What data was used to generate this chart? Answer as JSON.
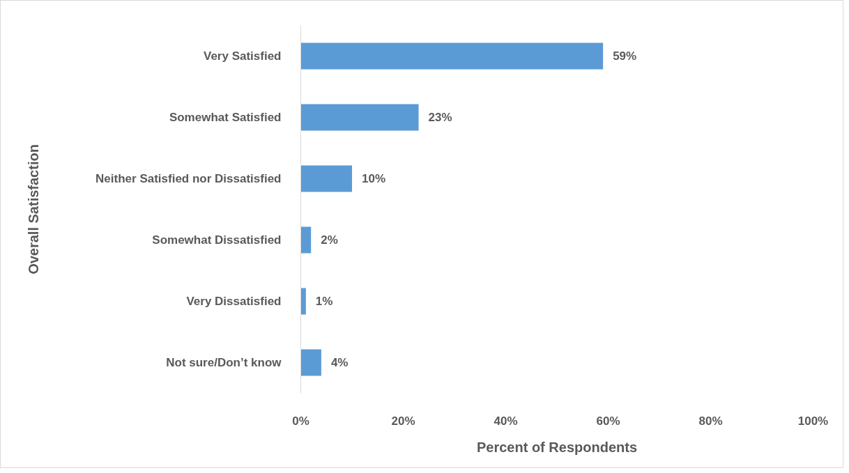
{
  "chart_data": {
    "type": "bar",
    "orientation": "horizontal",
    "xlabel": "Percent of Respondents",
    "ylabel": "Overall Satisfaction",
    "categories": [
      "Very Satisfied",
      "Somewhat Satisfied",
      "Neither Satisfied nor Dissatisfied",
      "Somewhat Dissatisfied",
      "Very Dissatisfied",
      "Not sure/Don’t know"
    ],
    "values": [
      59,
      23,
      10,
      2,
      1,
      4
    ],
    "value_labels": [
      "59%",
      "23%",
      "10%",
      "2%",
      "1%",
      "4%"
    ],
    "color": "#5b9bd5",
    "xlim": [
      0,
      100
    ],
    "xticks": [
      {
        "value": 0,
        "label": "0%"
      },
      {
        "value": 20,
        "label": "20%"
      },
      {
        "value": 40,
        "label": "40%"
      },
      {
        "value": 60,
        "label": "60%"
      },
      {
        "value": 80,
        "label": "80%"
      },
      {
        "value": 100,
        "label": "100%"
      }
    ],
    "grid": false
  }
}
